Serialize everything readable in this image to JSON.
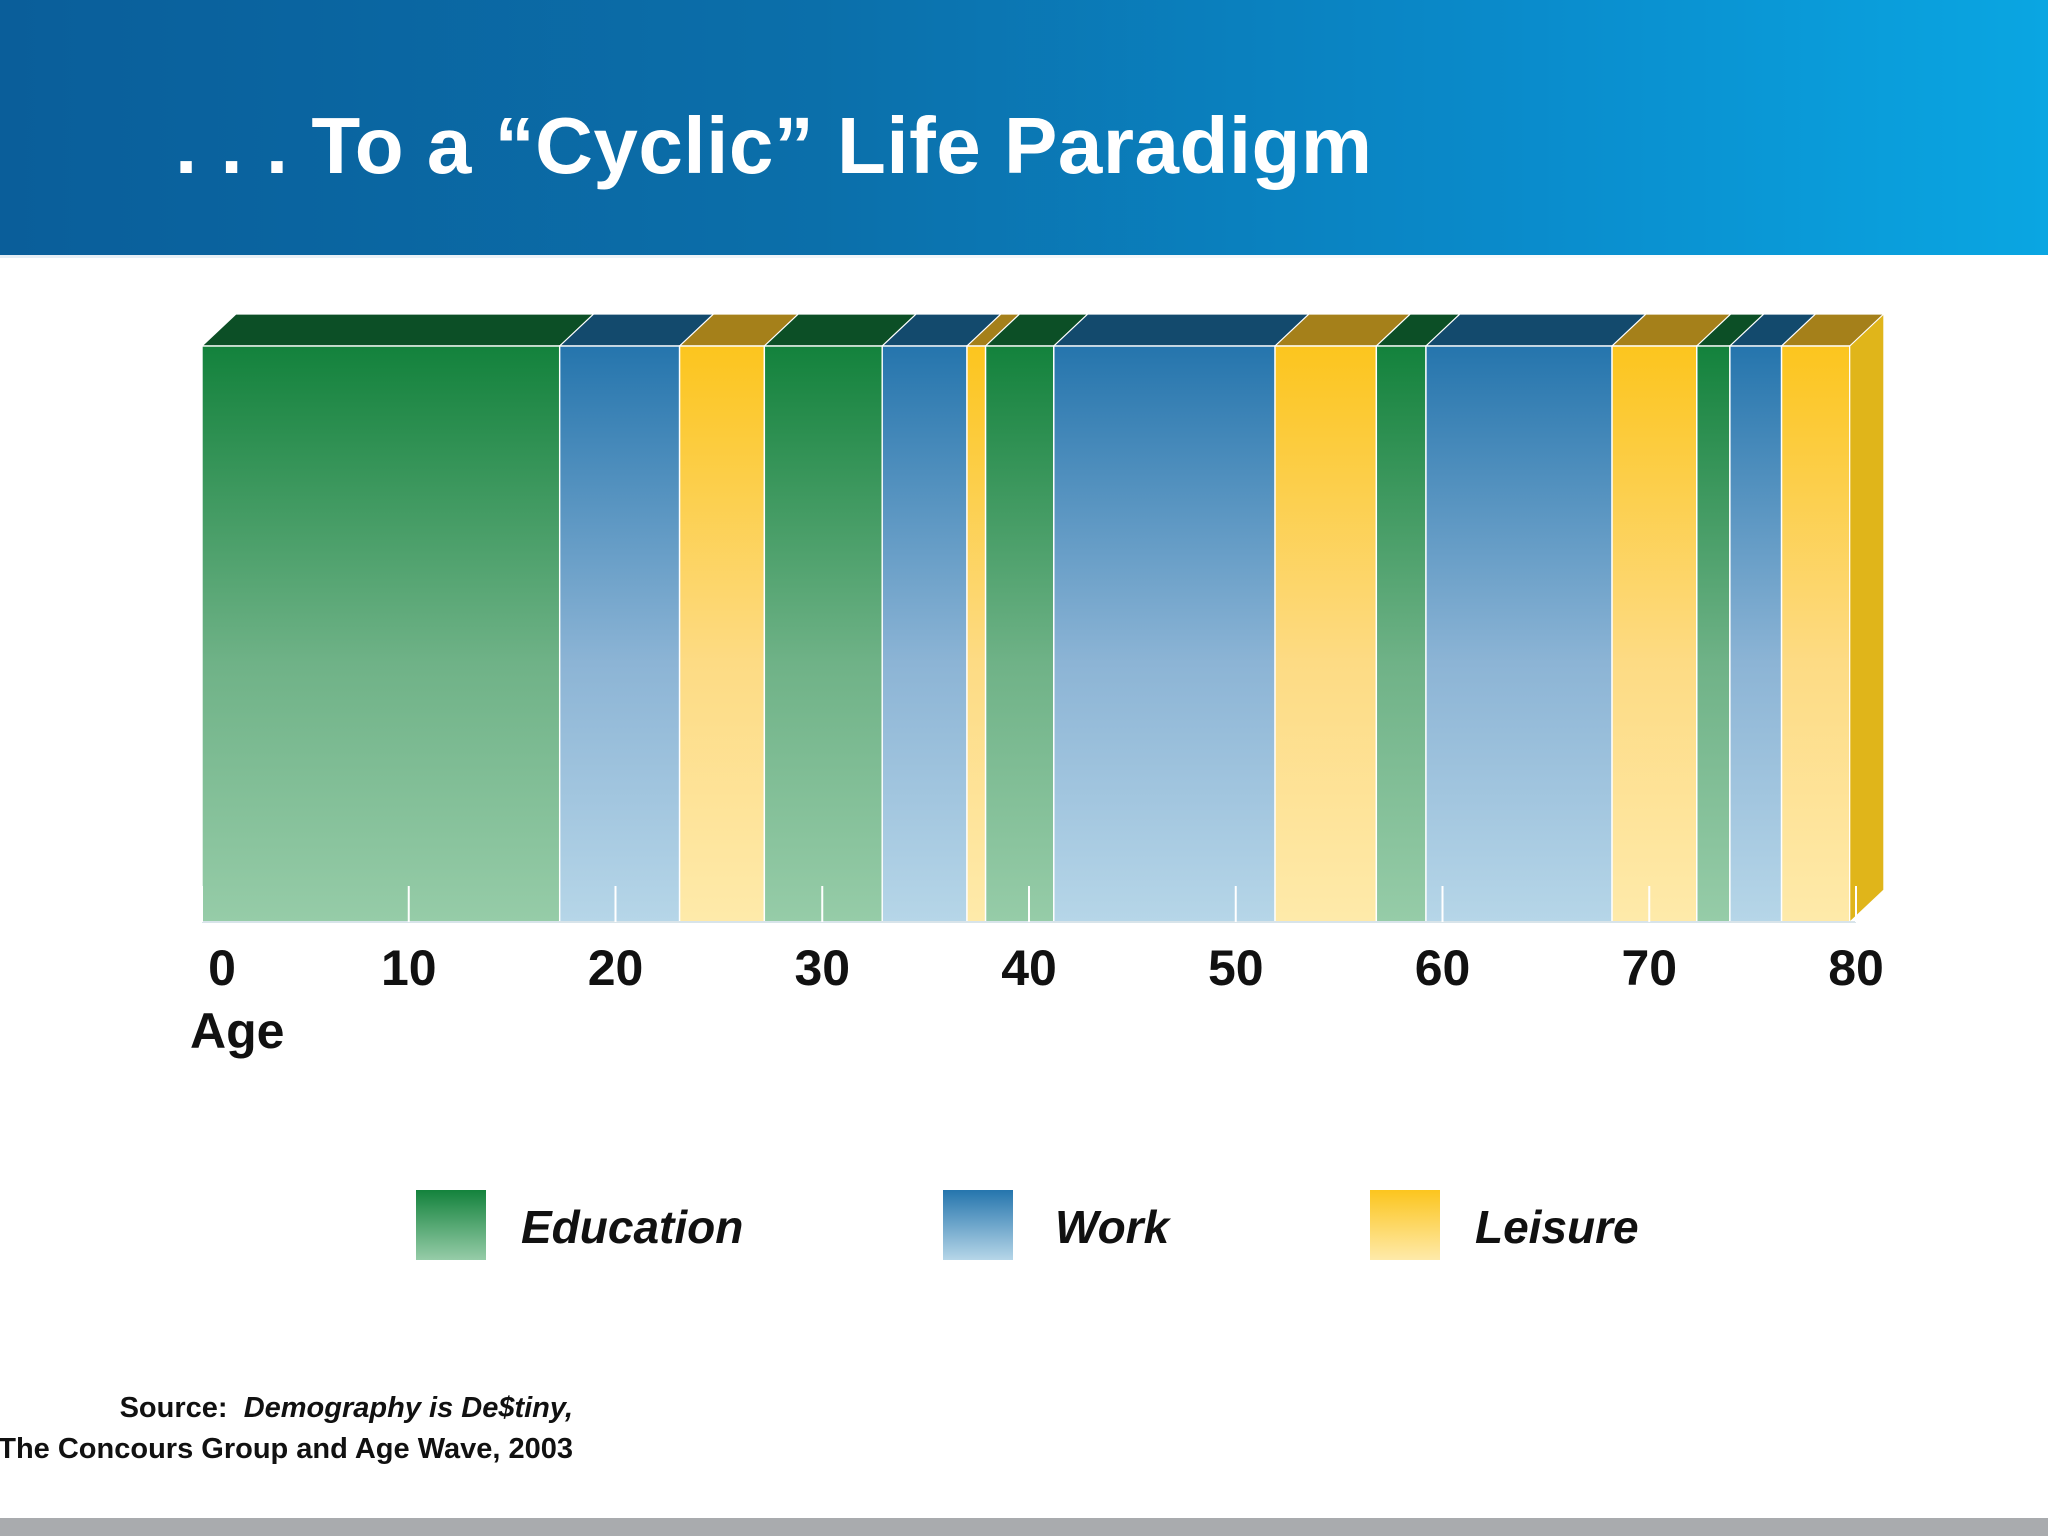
{
  "title": ". . . To a “Cyclic” Life Paradigm",
  "colors": {
    "header_start": "#0a5e9a",
    "header_end": "#0aa6e2",
    "education": "#1a8440",
    "work": "#2a7ab0",
    "leisure": "#fcc828"
  },
  "chart_data": {
    "type": "bar",
    "orientation": "horizontal-stacked-3d",
    "xlabel": "Age",
    "ylabel": "",
    "xlim": [
      0,
      80
    ],
    "xticks": [
      "0",
      "10",
      "20",
      "30",
      "40",
      "50",
      "60",
      "70",
      "80"
    ],
    "grid": false,
    "legend_placement": "bottom",
    "series": [
      {
        "name": "Education",
        "color": "#1a8440"
      },
      {
        "name": "Work",
        "color": "#2a7ab0"
      },
      {
        "name": "Leisure",
        "color": "#fcc828"
      }
    ],
    "segments": [
      {
        "series": "Education",
        "start": 0,
        "end": 17.3
      },
      {
        "series": "Work",
        "start": 17.3,
        "end": 23.1
      },
      {
        "series": "Leisure",
        "start": 23.1,
        "end": 27.2
      },
      {
        "series": "Education",
        "start": 27.2,
        "end": 32.9
      },
      {
        "series": "Work",
        "start": 32.9,
        "end": 37.0
      },
      {
        "series": "Leisure",
        "start": 37.0,
        "end": 37.9
      },
      {
        "series": "Education",
        "start": 37.9,
        "end": 41.2
      },
      {
        "series": "Work",
        "start": 41.2,
        "end": 51.9
      },
      {
        "series": "Leisure",
        "start": 51.9,
        "end": 56.8
      },
      {
        "series": "Education",
        "start": 56.8,
        "end": 59.2
      },
      {
        "series": "Work",
        "start": 59.2,
        "end": 68.2
      },
      {
        "series": "Leisure",
        "start": 68.2,
        "end": 72.3
      },
      {
        "series": "Education",
        "start": 72.3,
        "end": 73.9
      },
      {
        "series": "Work",
        "start": 73.9,
        "end": 76.4
      },
      {
        "series": "Leisure",
        "start": 76.4,
        "end": 79.7
      }
    ]
  },
  "legend": [
    {
      "label": "Education",
      "key": "education"
    },
    {
      "label": "Work",
      "key": "work"
    },
    {
      "label": "Leisure",
      "key": "leisure"
    }
  ],
  "source": {
    "prefix": "Source:",
    "title": "Demography is De$tiny,",
    "line2": "The Concours Group and Age Wave, 2003"
  }
}
